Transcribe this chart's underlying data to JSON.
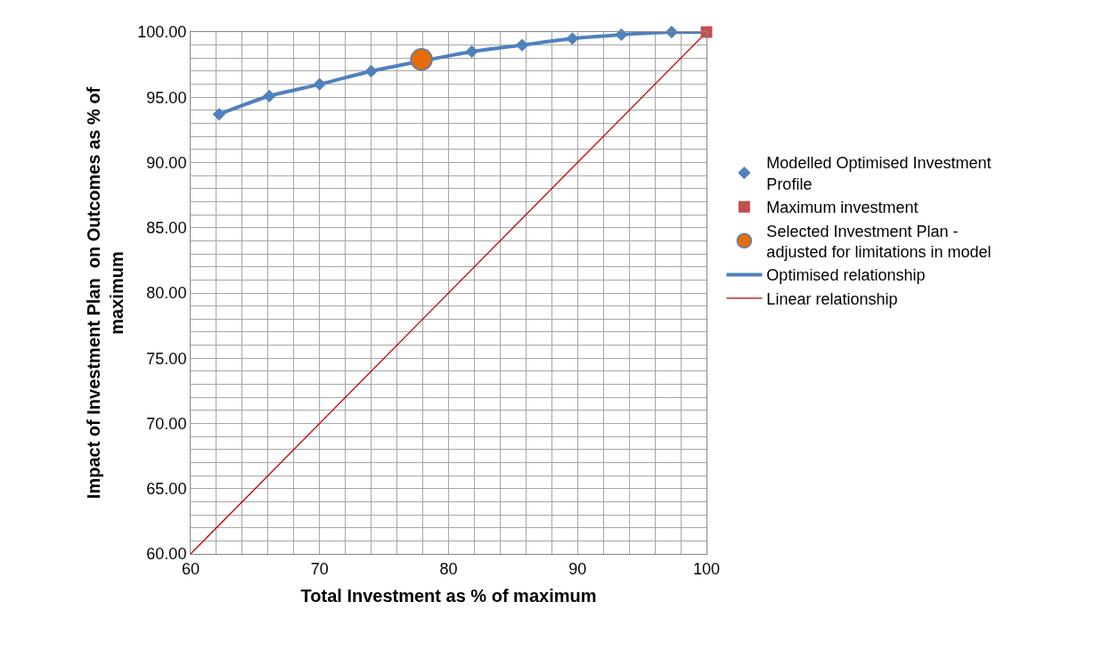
{
  "chart_data": {
    "type": "scatter",
    "xlabel": "Total Investment as % of maximum",
    "ylabel": "Impact of Investment Plan  on Outcomes as % of maximum",
    "series": [
      {
        "name": "Modelled Optimised Investment Profile",
        "marker": "diamond",
        "color": "#4f81bd",
        "x": [
          62.2,
          66.1,
          70.0,
          74.0,
          77.8,
          81.8,
          85.7,
          89.6,
          93.4,
          97.3
        ],
        "values": [
          93.7,
          95.1,
          96.0,
          97.0,
          null,
          98.5,
          99.0,
          99.5,
          99.8,
          100.0
        ]
      },
      {
        "name": "Maximum investment",
        "marker": "square",
        "color": "#c0504d",
        "x": [
          100
        ],
        "values": [
          100
        ]
      },
      {
        "name": "Selected Investment Plan - adjusted for limitations in model",
        "marker": "circle",
        "color": "#e46c0a",
        "x": [
          77.9
        ],
        "values": [
          97.9
        ]
      },
      {
        "name": "Optimised relationship",
        "type": "line",
        "marker": "none",
        "color": "#4f81bd",
        "x": [
          62.2,
          66.1,
          70.0,
          74.0,
          77.8,
          81.8,
          85.7,
          89.6,
          93.4,
          97.3,
          100
        ],
        "values": [
          93.7,
          95.1,
          96.0,
          97.0,
          null,
          98.5,
          99.0,
          99.5,
          99.8,
          100.0,
          100.0
        ]
      },
      {
        "name": "Linear relationship",
        "type": "line",
        "marker": "none",
        "color": "#c00000",
        "x": [
          60,
          100
        ],
        "values": [
          60,
          100
        ]
      }
    ],
    "xlim": [
      60,
      100
    ],
    "xticks": [
      60,
      {
        "value": 62,
        "label": null
      },
      {
        "value": 64,
        "label": null
      },
      {
        "value": 66,
        "label": null
      },
      {
        "value": 68,
        "label": null
      },
      70,
      {
        "value": 72,
        "label": null
      },
      {
        "value": 74,
        "label": null
      },
      {
        "value": 76,
        "label": null
      },
      {
        "value": 78,
        "label": null
      },
      80,
      {
        "value": 82,
        "label": null
      },
      {
        "value": 84,
        "label": null
      },
      {
        "value": 86,
        "label": null
      },
      {
        "value": 88,
        "label": null
      },
      90,
      {
        "value": 92,
        "label": null
      },
      {
        "value": 94,
        "label": null
      },
      {
        "value": 96,
        "label": null
      },
      {
        "value": 98,
        "label": null
      },
      100
    ],
    "ylim": [
      60,
      100
    ],
    "yticks": [
      {
        "value": 60,
        "label": "60.00"
      },
      {
        "value": 61,
        "label": null
      },
      {
        "value": 62,
        "label": null
      },
      {
        "value": 63,
        "label": null
      },
      {
        "value": 64,
        "label": null
      },
      {
        "value": 65,
        "label": "65.00"
      },
      {
        "value": 66,
        "label": null
      },
      {
        "value": 67,
        "label": null
      },
      {
        "value": 68,
        "label": null
      },
      {
        "value": 69,
        "label": null
      },
      {
        "value": 70,
        "label": "70.00"
      },
      {
        "value": 71,
        "label": null
      },
      {
        "value": 72,
        "label": null
      },
      {
        "value": 73,
        "label": null
      },
      {
        "value": 74,
        "label": null
      },
      {
        "value": 75,
        "label": "75.00"
      },
      {
        "value": 76,
        "label": null
      },
      {
        "value": 77,
        "label": null
      },
      {
        "value": 78,
        "label": null
      },
      {
        "value": 79,
        "label": null
      },
      {
        "value": 80,
        "label": "80.00"
      },
      {
        "value": 81,
        "label": null
      },
      {
        "value": 82,
        "label": null
      },
      {
        "value": 83,
        "label": null
      },
      {
        "value": 84,
        "label": null
      },
      {
        "value": 85,
        "label": "85.00"
      },
      {
        "value": 86,
        "label": null
      },
      {
        "value": 87,
        "label": null
      },
      {
        "value": 88,
        "label": null
      },
      {
        "value": 89,
        "label": null
      },
      {
        "value": 90,
        "label": "90.00"
      },
      {
        "value": 91,
        "label": null
      },
      {
        "value": 92,
        "label": null
      },
      {
        "value": 93,
        "label": null
      },
      {
        "value": 94,
        "label": null
      },
      {
        "value": 95,
        "label": "95.00"
      },
      {
        "value": 96,
        "label": null
      },
      {
        "value": 97,
        "label": null
      },
      {
        "value": 98,
        "label": null
      },
      {
        "value": 99,
        "label": null
      },
      {
        "value": 100,
        "label": "100.00"
      }
    ],
    "grid": true,
    "legend": "right"
  }
}
